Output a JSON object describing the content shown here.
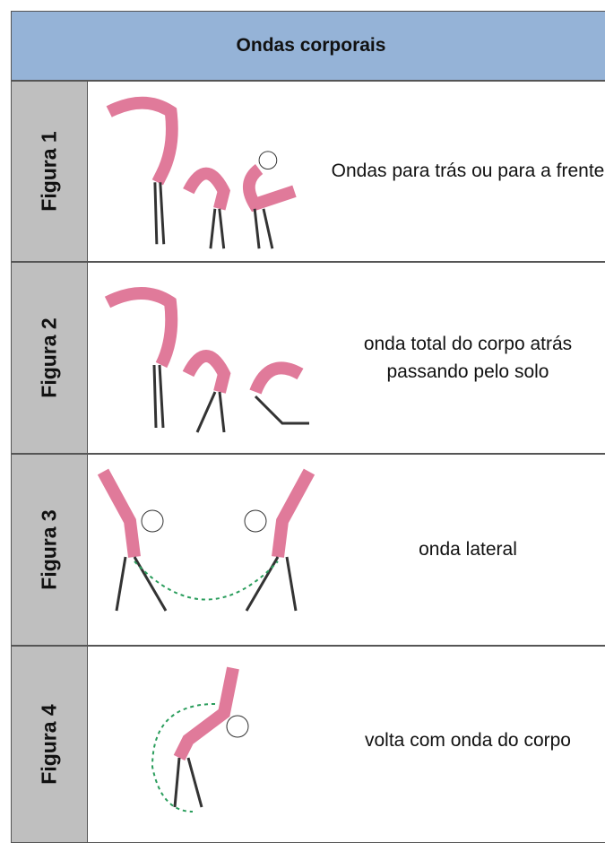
{
  "header": {
    "title": "Ondas corporais"
  },
  "rows": [
    {
      "label": "Figura 1",
      "description": "Ondas para trás ou para a frente"
    },
    {
      "label": "Figura 2",
      "description": "onda total do corpo atrás passando pelo solo"
    },
    {
      "label": "Figura 3",
      "description": "onda lateral"
    },
    {
      "label": "Figura 4",
      "description": "volta com onda do corpo"
    }
  ]
}
